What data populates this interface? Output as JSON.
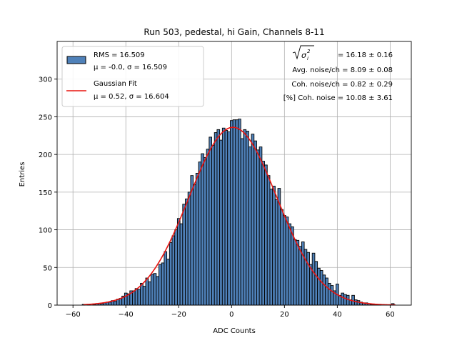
{
  "chart_data": {
    "type": "bar",
    "title": "Run 503, pedestal, hi Gain, Channels 8-11",
    "xlabel": "ADC Counts",
    "ylabel": "Entries",
    "xlim": [
      -66,
      68
    ],
    "ylim": [
      0,
      350
    ],
    "xticks": [
      -60,
      -40,
      -20,
      0,
      20,
      40,
      60
    ],
    "xtick_labels": [
      "−60",
      "−40",
      "−20",
      "0",
      "20",
      "40",
      "60"
    ],
    "yticks": [
      0,
      50,
      100,
      150,
      200,
      250,
      300
    ],
    "ytick_labels": [
      "0",
      "50",
      "100",
      "150",
      "200",
      "250",
      "300"
    ],
    "grid": true,
    "histogram": {
      "name": "RMS = 16.509",
      "stats_label": "μ = -0.0, σ = 16.509",
      "color": "#4f81b9",
      "edge_color": "#000000",
      "bins": [
        {
          "x": -56,
          "y": 1
        },
        {
          "x": -55,
          "y": 0
        },
        {
          "x": -54,
          "y": 1
        },
        {
          "x": -53,
          "y": 0
        },
        {
          "x": -52,
          "y": 1
        },
        {
          "x": -51,
          "y": 2
        },
        {
          "x": -50,
          "y": 2
        },
        {
          "x": -49,
          "y": 2
        },
        {
          "x": -48,
          "y": 3
        },
        {
          "x": -47,
          "y": 4
        },
        {
          "x": -46,
          "y": 4
        },
        {
          "x": -45,
          "y": 6
        },
        {
          "x": -44,
          "y": 5
        },
        {
          "x": -43,
          "y": 8
        },
        {
          "x": -42,
          "y": 9
        },
        {
          "x": -41,
          "y": 12
        },
        {
          "x": -40,
          "y": 16
        },
        {
          "x": -39,
          "y": 15
        },
        {
          "x": -38,
          "y": 19
        },
        {
          "x": -37,
          "y": 19
        },
        {
          "x": -36,
          "y": 22
        },
        {
          "x": -35,
          "y": 21
        },
        {
          "x": -34,
          "y": 29
        },
        {
          "x": -33,
          "y": 25
        },
        {
          "x": -32,
          "y": 36
        },
        {
          "x": -31,
          "y": 31
        },
        {
          "x": -30,
          "y": 41
        },
        {
          "x": -29,
          "y": 42
        },
        {
          "x": -28,
          "y": 38
        },
        {
          "x": -27,
          "y": 54
        },
        {
          "x": -26,
          "y": 56
        },
        {
          "x": -25,
          "y": 71
        },
        {
          "x": -24,
          "y": 61
        },
        {
          "x": -23,
          "y": 83
        },
        {
          "x": -22,
          "y": 92
        },
        {
          "x": -21,
          "y": 100
        },
        {
          "x": -20,
          "y": 115
        },
        {
          "x": -19,
          "y": 108
        },
        {
          "x": -18,
          "y": 134
        },
        {
          "x": -17,
          "y": 141
        },
        {
          "x": -16,
          "y": 150
        },
        {
          "x": -15,
          "y": 172
        },
        {
          "x": -14,
          "y": 160
        },
        {
          "x": -13,
          "y": 175
        },
        {
          "x": -12,
          "y": 190
        },
        {
          "x": -11,
          "y": 201
        },
        {
          "x": -10,
          "y": 196
        },
        {
          "x": -9,
          "y": 207
        },
        {
          "x": -8,
          "y": 223
        },
        {
          "x": -7,
          "y": 212
        },
        {
          "x": -6,
          "y": 229
        },
        {
          "x": -5,
          "y": 233
        },
        {
          "x": -4,
          "y": 219
        },
        {
          "x": -3,
          "y": 235
        },
        {
          "x": -2,
          "y": 232
        },
        {
          "x": -1,
          "y": 230
        },
        {
          "x": 0,
          "y": 245
        },
        {
          "x": 1,
          "y": 246
        },
        {
          "x": 2,
          "y": 246
        },
        {
          "x": 3,
          "y": 247
        },
        {
          "x": 4,
          "y": 221
        },
        {
          "x": 5,
          "y": 233
        },
        {
          "x": 6,
          "y": 231
        },
        {
          "x": 7,
          "y": 210
        },
        {
          "x": 8,
          "y": 227
        },
        {
          "x": 9,
          "y": 218
        },
        {
          "x": 10,
          "y": 206
        },
        {
          "x": 11,
          "y": 210
        },
        {
          "x": 12,
          "y": 191
        },
        {
          "x": 13,
          "y": 186
        },
        {
          "x": 14,
          "y": 172
        },
        {
          "x": 15,
          "y": 154
        },
        {
          "x": 16,
          "y": 158
        },
        {
          "x": 17,
          "y": 140
        },
        {
          "x": 18,
          "y": 155
        },
        {
          "x": 19,
          "y": 127
        },
        {
          "x": 20,
          "y": 119
        },
        {
          "x": 21,
          "y": 117
        },
        {
          "x": 22,
          "y": 108
        },
        {
          "x": 23,
          "y": 104
        },
        {
          "x": 24,
          "y": 87
        },
        {
          "x": 25,
          "y": 86
        },
        {
          "x": 26,
          "y": 78
        },
        {
          "x": 27,
          "y": 84
        },
        {
          "x": 28,
          "y": 74
        },
        {
          "x": 29,
          "y": 70
        },
        {
          "x": 30,
          "y": 54
        },
        {
          "x": 31,
          "y": 69
        },
        {
          "x": 32,
          "y": 58
        },
        {
          "x": 33,
          "y": 49
        },
        {
          "x": 34,
          "y": 46
        },
        {
          "x": 35,
          "y": 40
        },
        {
          "x": 36,
          "y": 36
        },
        {
          "x": 37,
          "y": 29
        },
        {
          "x": 38,
          "y": 26
        },
        {
          "x": 39,
          "y": 19
        },
        {
          "x": 40,
          "y": 28
        },
        {
          "x": 41,
          "y": 13
        },
        {
          "x": 42,
          "y": 16
        },
        {
          "x": 43,
          "y": 14
        },
        {
          "x": 44,
          "y": 13
        },
        {
          "x": 45,
          "y": 7
        },
        {
          "x": 46,
          "y": 13
        },
        {
          "x": 47,
          "y": 7
        },
        {
          "x": 48,
          "y": 6
        },
        {
          "x": 49,
          "y": 4
        },
        {
          "x": 50,
          "y": 3
        },
        {
          "x": 51,
          "y": 3
        },
        {
          "x": 52,
          "y": 2
        },
        {
          "x": 53,
          "y": 1
        },
        {
          "x": 54,
          "y": 1
        },
        {
          "x": 55,
          "y": 1
        },
        {
          "x": 56,
          "y": 1
        },
        {
          "x": 57,
          "y": 0
        },
        {
          "x": 58,
          "y": 0
        },
        {
          "x": 59,
          "y": 0
        },
        {
          "x": 60,
          "y": 0
        },
        {
          "x": 61,
          "y": 2
        }
      ]
    },
    "fit": {
      "name": "Gaussian Fit",
      "stats_label": "μ = 0.52, σ = 16.604",
      "color": "#e8130f",
      "mu": 0.52,
      "sigma": 16.604,
      "amplitude": 236,
      "x_range": [
        -56,
        62
      ]
    },
    "annotations": [
      {
        "prefix": "",
        "text": " = 16.18 ± 0.16",
        "has_sqrt": true
      },
      {
        "text": "Avg. noise/ch = 8.09 ± 0.08"
      },
      {
        "text": "Coh. noise/ch = 0.82 ± 0.29"
      },
      {
        "text": "[%] Coh. noise = 10.08 ± 3.61"
      }
    ],
    "legend_position": "upper-left"
  }
}
